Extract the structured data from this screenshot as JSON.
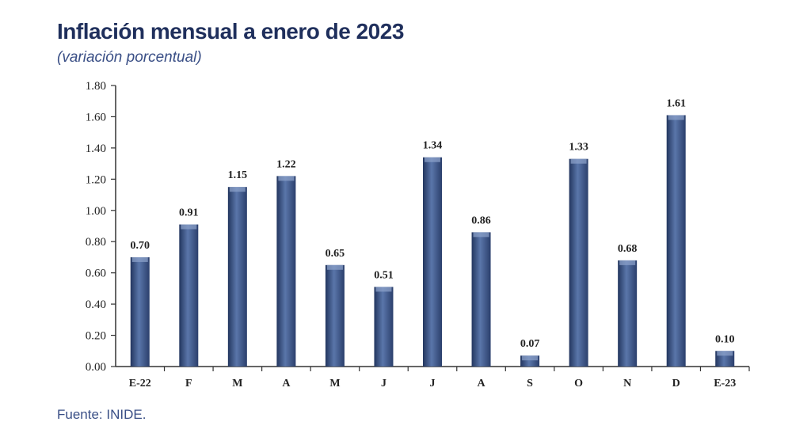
{
  "header": {
    "title": "Inflación mensual a enero de 2023",
    "subtitle": "(variación porcentual)"
  },
  "footer": {
    "source": "Fuente: INIDE."
  },
  "colors": {
    "bar": "#4a6598",
    "bar_dark": "#23365f",
    "bar_light": "#8ea4cc",
    "axis": "#333333"
  },
  "chart_data": {
    "type": "bar",
    "categories": [
      "E-22",
      "F",
      "M",
      "A",
      "M",
      "J",
      "J",
      "A",
      "S",
      "O",
      "N",
      "D",
      "E-23"
    ],
    "values": [
      0.7,
      0.91,
      1.15,
      1.22,
      0.65,
      0.51,
      1.34,
      0.86,
      0.07,
      1.33,
      0.68,
      1.61,
      0.1
    ],
    "value_labels": [
      "0.70",
      "0.91",
      "1.15",
      "1.22",
      "0.65",
      "0.51",
      "1.34",
      "0.86",
      "0.07",
      "1.33",
      "0.68",
      "1.61",
      "0.10"
    ],
    "yticks": [
      "0.00",
      "0.20",
      "0.40",
      "0.60",
      "0.80",
      "1.00",
      "1.20",
      "1.40",
      "1.60",
      "1.80"
    ],
    "ylim": [
      0,
      1.8
    ],
    "grid": false,
    "legend": "none"
  }
}
